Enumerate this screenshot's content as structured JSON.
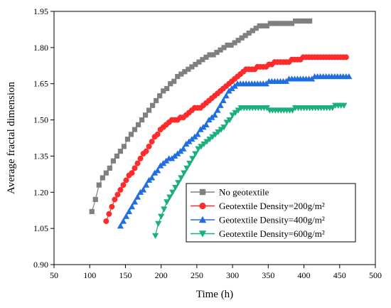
{
  "chart_data": {
    "type": "line",
    "title": "",
    "xlabel": "Time (h)",
    "ylabel": "Average fractal dimension",
    "xlim": [
      50,
      500
    ],
    "ylim": [
      0.9,
      1.95
    ],
    "x_ticks": [
      "50",
      "100",
      "150",
      "200",
      "250",
      "300",
      "350",
      "400",
      "450",
      "500"
    ],
    "y_ticks": [
      "0.90",
      "1.05",
      "1.20",
      "1.35",
      "1.50",
      "1.65",
      "1.80",
      "1.95"
    ],
    "grid": false,
    "legend_position": "bottom-right",
    "series": [
      {
        "name": "No geotextile",
        "color": "#808080",
        "marker": "square",
        "x_start": 103,
        "x_step": 5,
        "values": [
          1.12,
          1.17,
          1.23,
          1.26,
          1.28,
          1.3,
          1.33,
          1.35,
          1.37,
          1.39,
          1.42,
          1.44,
          1.46,
          1.48,
          1.5,
          1.52,
          1.54,
          1.56,
          1.58,
          1.6,
          1.62,
          1.63,
          1.65,
          1.66,
          1.68,
          1.69,
          1.7,
          1.71,
          1.72,
          1.73,
          1.74,
          1.75,
          1.76,
          1.77,
          1.77,
          1.78,
          1.79,
          1.8,
          1.81,
          1.81,
          1.82,
          1.83,
          1.84,
          1.85,
          1.86,
          1.87,
          1.88,
          1.89,
          1.89,
          1.89,
          1.9,
          1.9,
          1.9,
          1.9,
          1.9,
          1.9,
          1.9,
          1.91,
          1.91,
          1.91,
          1.91,
          1.91
        ]
      },
      {
        "name": "Geotextile Density=200g/m²",
        "color": "#ff2a2a",
        "marker": "circle",
        "x_start": 123,
        "x_step": 4,
        "values": [
          1.08,
          1.11,
          1.14,
          1.17,
          1.19,
          1.21,
          1.23,
          1.25,
          1.27,
          1.28,
          1.3,
          1.32,
          1.34,
          1.36,
          1.37,
          1.39,
          1.41,
          1.43,
          1.44,
          1.46,
          1.47,
          1.48,
          1.49,
          1.5,
          1.5,
          1.5,
          1.51,
          1.51,
          1.52,
          1.53,
          1.54,
          1.55,
          1.55,
          1.55,
          1.56,
          1.57,
          1.58,
          1.59,
          1.6,
          1.61,
          1.62,
          1.63,
          1.64,
          1.65,
          1.66,
          1.67,
          1.68,
          1.69,
          1.7,
          1.71,
          1.71,
          1.71,
          1.71,
          1.72,
          1.72,
          1.72,
          1.72,
          1.73,
          1.73,
          1.74,
          1.74,
          1.74,
          1.74,
          1.74,
          1.74,
          1.75,
          1.75,
          1.75,
          1.75,
          1.76,
          1.76,
          1.76,
          1.76,
          1.76,
          1.76,
          1.76,
          1.76,
          1.76,
          1.76,
          1.76,
          1.76,
          1.76,
          1.76,
          1.76,
          1.76
        ]
      },
      {
        "name": "Geotextile Density=400g/m²",
        "color": "#1f6fe0",
        "marker": "triangle-up",
        "x_start": 143,
        "x_step": 4,
        "values": [
          1.06,
          1.08,
          1.1,
          1.12,
          1.14,
          1.16,
          1.18,
          1.2,
          1.21,
          1.23,
          1.25,
          1.26,
          1.28,
          1.29,
          1.31,
          1.32,
          1.33,
          1.34,
          1.34,
          1.35,
          1.36,
          1.37,
          1.38,
          1.4,
          1.41,
          1.42,
          1.43,
          1.44,
          1.46,
          1.47,
          1.48,
          1.5,
          1.51,
          1.52,
          1.54,
          1.56,
          1.58,
          1.6,
          1.62,
          1.63,
          1.64,
          1.65,
          1.65,
          1.65,
          1.65,
          1.65,
          1.65,
          1.65,
          1.65,
          1.65,
          1.65,
          1.65,
          1.66,
          1.66,
          1.66,
          1.66,
          1.66,
          1.66,
          1.66,
          1.67,
          1.67,
          1.67,
          1.67,
          1.67,
          1.67,
          1.67,
          1.67,
          1.67,
          1.68,
          1.68,
          1.68,
          1.68,
          1.68,
          1.68,
          1.68,
          1.68,
          1.68,
          1.68,
          1.68,
          1.68,
          1.68
        ]
      },
      {
        "name": "Geotextile Density=600g/m²",
        "color": "#1ab07a",
        "marker": "triangle-down",
        "x_start": 192,
        "x_step": 4,
        "values": [
          1.02,
          1.07,
          1.1,
          1.13,
          1.16,
          1.18,
          1.2,
          1.22,
          1.24,
          1.26,
          1.28,
          1.3,
          1.32,
          1.34,
          1.36,
          1.38,
          1.39,
          1.4,
          1.41,
          1.42,
          1.43,
          1.44,
          1.45,
          1.46,
          1.47,
          1.49,
          1.5,
          1.52,
          1.53,
          1.54,
          1.55,
          1.55,
          1.55,
          1.55,
          1.55,
          1.55,
          1.55,
          1.55,
          1.55,
          1.55,
          1.54,
          1.54,
          1.54,
          1.54,
          1.54,
          1.54,
          1.54,
          1.54,
          1.54,
          1.55,
          1.55,
          1.55,
          1.55,
          1.55,
          1.55,
          1.55,
          1.55,
          1.55,
          1.55,
          1.55,
          1.55,
          1.55,
          1.55,
          1.56,
          1.56,
          1.56,
          1.56
        ]
      }
    ]
  }
}
